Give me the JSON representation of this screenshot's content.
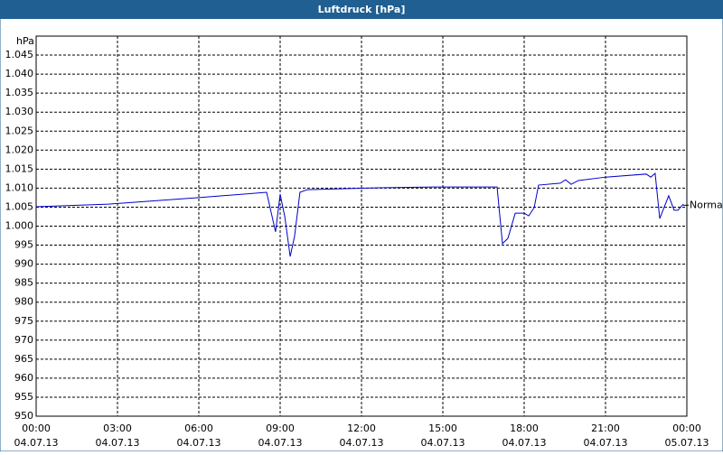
{
  "chart_data": {
    "type": "line",
    "title": "Luftdruck [hPa]",
    "y_label": "hPa",
    "xlim": [
      0,
      24
    ],
    "ylim": [
      950,
      1050
    ],
    "xticks": [
      {
        "value": 0,
        "label": "00:00"
      },
      {
        "value": 3,
        "label": "03:00"
      },
      {
        "value": 6,
        "label": "06:00"
      },
      {
        "value": 9,
        "label": "09:00"
      },
      {
        "value": 12,
        "label": "12:00"
      },
      {
        "value": 15,
        "label": "15:00"
      },
      {
        "value": 18,
        "label": "18:00"
      },
      {
        "value": 21,
        "label": "21:00"
      },
      {
        "value": 24,
        "label": "00:00"
      }
    ],
    "xtick_dates": [
      "04.07.13",
      "04.07.13",
      "04.07.13",
      "04.07.13",
      "04.07.13",
      "04.07.13",
      "04.07.13",
      "04.07.13",
      "05.07.13"
    ],
    "yticks": [
      950,
      955,
      960,
      965,
      970,
      975,
      980,
      985,
      990,
      995,
      {
        "value": 1000,
        "label": "1.000"
      },
      {
        "value": 1005,
        "label": "1.005"
      },
      {
        "value": 1010,
        "label": "1.010"
      },
      {
        "value": 1015,
        "label": "1.015"
      },
      {
        "value": 1020,
        "label": "1.020"
      },
      {
        "value": 1025,
        "label": "1.025"
      },
      {
        "value": 1030,
        "label": "1.030"
      },
      {
        "value": 1035,
        "label": "1.035"
      },
      {
        "value": 1040,
        "label": "1.040"
      },
      {
        "value": 1045,
        "label": "1.045"
      }
    ],
    "grid": true,
    "normal": {
      "label": "Normal",
      "value": 1005.5
    },
    "series": [
      {
        "color": "#0000cc",
        "x": [
          0,
          2.67,
          6.0,
          8.5,
          8.83,
          9.0,
          9.17,
          9.37,
          9.53,
          9.73,
          10.0,
          12.67,
          14.67,
          17.0,
          17.2,
          17.4,
          17.67,
          18.0,
          18.17,
          18.37,
          18.53,
          19.33,
          19.53,
          19.73,
          20.0,
          21.0,
          22.5,
          22.67,
          22.83,
          23.0,
          23.33,
          23.53,
          23.67,
          23.87
        ],
        "values": [
          1005.1,
          1005.8,
          1007.5,
          1008.9,
          998.5,
          1008.4,
          1002.5,
          992,
          997.3,
          1008.9,
          1009.6,
          1010.1,
          1010.3,
          1010.3,
          995.4,
          996.8,
          1003.4,
          1003.4,
          1002.7,
          1004.9,
          1010.8,
          1011.3,
          1012.2,
          1011,
          1012,
          1012.9,
          1013.7,
          1012.9,
          1013.9,
          1002,
          1008,
          1004.2,
          1004.2,
          1005.8
        ]
      }
    ]
  }
}
